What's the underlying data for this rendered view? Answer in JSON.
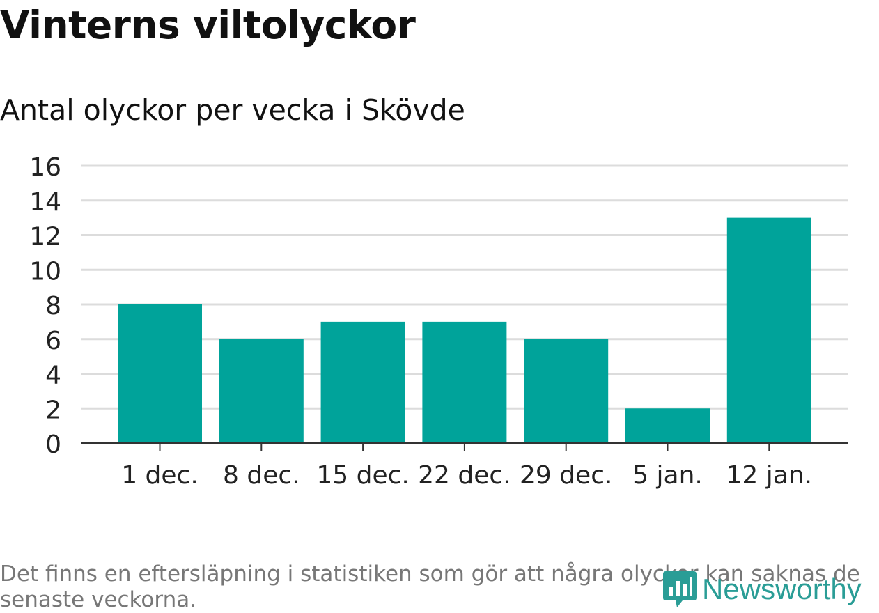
{
  "header": {
    "title": "Vinterns viltolyckor",
    "subtitle": "Antal olyckor per vecka i Skövde"
  },
  "footer": {
    "note": "Det finns en eftersläpning i statistiken som gör att några olyckor kan saknas de senaste veckorna.",
    "brand": "Newsworthy"
  },
  "colors": {
    "bar": "#00a39a",
    "grid": "#dcdcdc",
    "axis": "#333333",
    "brand": "#2a9d96"
  },
  "chart_data": {
    "type": "bar",
    "title": "Vinterns viltolyckor",
    "subtitle": "Antal olyckor per vecka i Skövde",
    "xlabel": "",
    "ylabel": "",
    "categories": [
      "1 dec.",
      "8 dec.",
      "15 dec.",
      "22 dec.",
      "29 dec.",
      "5 jan.",
      "12 jan."
    ],
    "values": [
      8,
      6,
      7,
      7,
      6,
      2,
      13
    ],
    "ylim": [
      0,
      16
    ],
    "yticks": [
      0,
      2,
      4,
      6,
      8,
      10,
      12,
      14,
      16
    ],
    "grid": true
  }
}
